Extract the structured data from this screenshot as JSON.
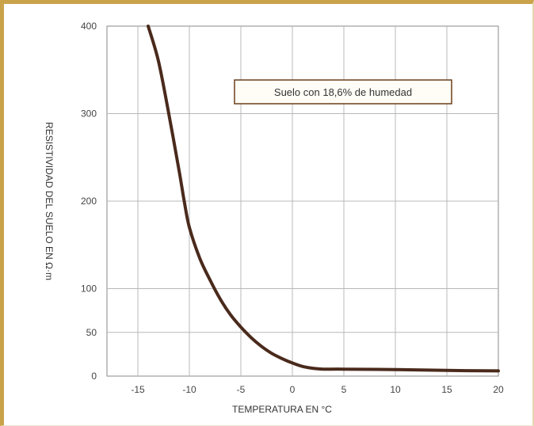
{
  "chart_data": {
    "type": "line",
    "xlabel": "TEMPERATURA EN °C",
    "ylabel": "RESISTIVIDAD DEL SUELO EN Ω·m",
    "xlim": [
      -18,
      20
    ],
    "ylim": [
      0,
      400
    ],
    "x_ticks": [
      -15,
      -10,
      -5,
      0,
      5,
      10,
      15,
      20
    ],
    "y_ticks": [
      0,
      50,
      100,
      200,
      300,
      400
    ],
    "grid": true,
    "annotation": "Suelo con 18,6% de humedad",
    "series": [
      {
        "color": "#4a2a1c",
        "x": [
          -14,
          -13,
          -12,
          -11,
          -10.5,
          -10,
          -9,
          -8,
          -7,
          -6,
          -5,
          -4,
          -3,
          -2,
          -1,
          0,
          1,
          2,
          3,
          5,
          10,
          15,
          20
        ],
        "y": [
          400,
          360,
          300,
          235,
          200,
          170,
          135,
          110,
          88,
          70,
          56,
          44,
          34,
          26,
          20,
          15,
          11,
          9,
          8,
          8,
          7.5,
          6.5,
          6
        ]
      }
    ]
  }
}
